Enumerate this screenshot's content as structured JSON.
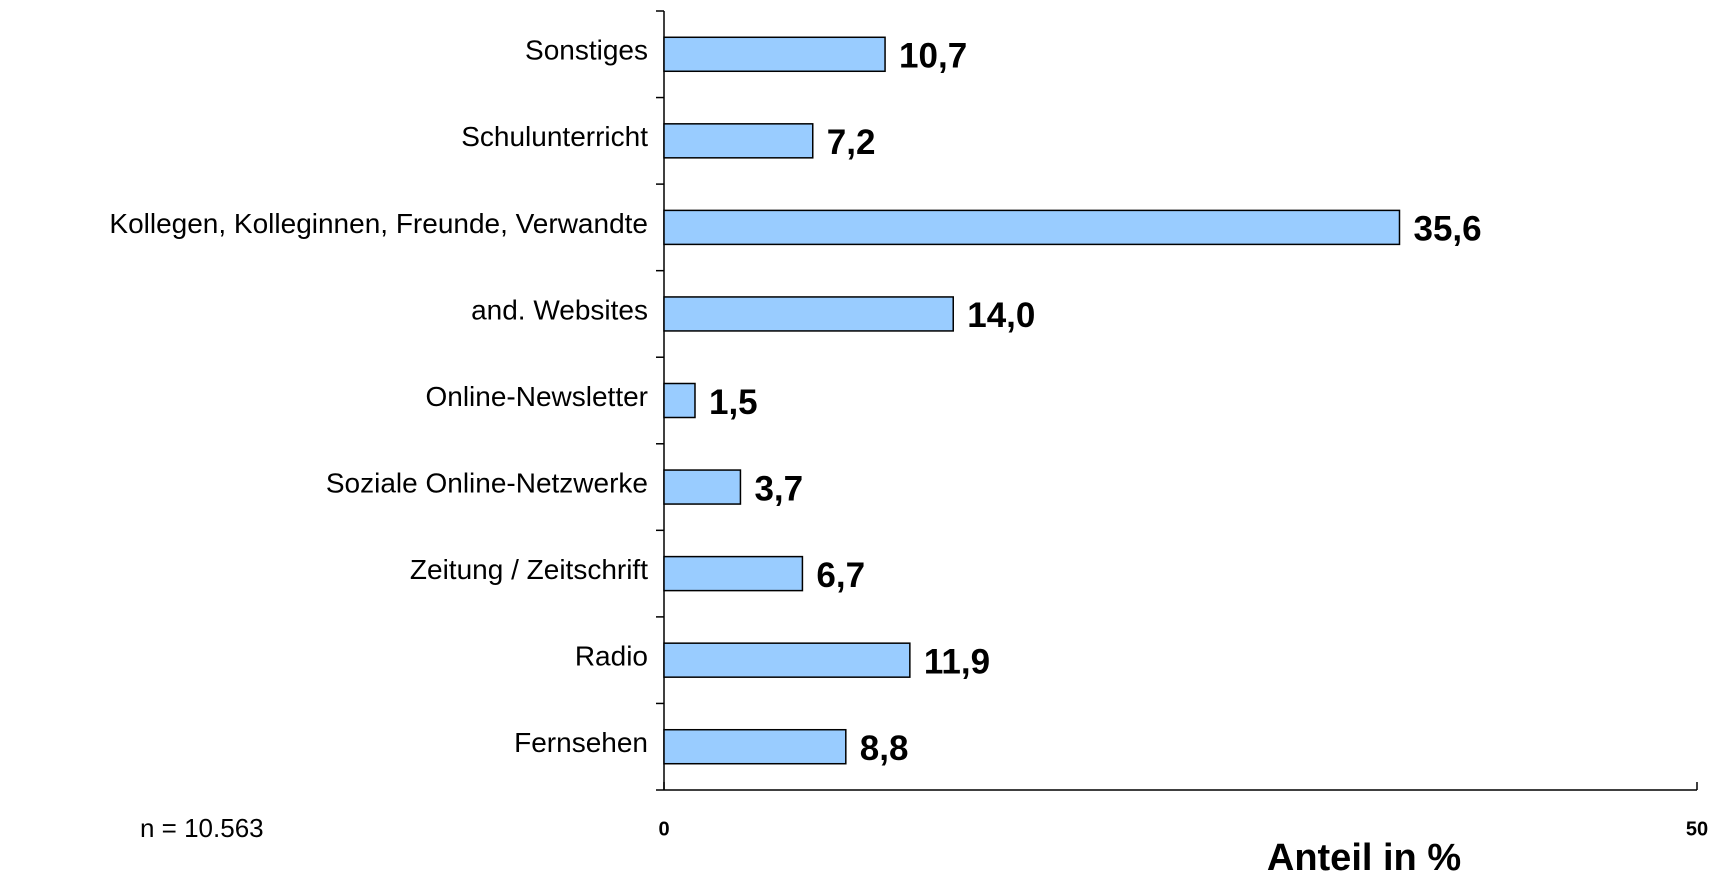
{
  "chart_data": {
    "type": "barh",
    "categories": [
      "Sonstiges",
      "Schulunterricht",
      "Kollegen, Kolleginnen, Freunde, Verwandte",
      "and. Websites",
      "Online-Newsletter",
      "Soziale Online-Netzwerke",
      "Zeitung / Zeitschrift",
      "Radio",
      "Fernsehen"
    ],
    "values": [
      10.7,
      7.2,
      35.6,
      14.0,
      1.5,
      3.7,
      6.7,
      11.9,
      8.8
    ],
    "value_labels": [
      "10,7",
      "7,2",
      "35,6",
      "14,0",
      "1,5",
      "3,7",
      "6,7",
      "11,9",
      "8,8"
    ],
    "color": "#99ccff",
    "xlim": [
      0,
      50
    ],
    "xticks": [
      0,
      50
    ],
    "xlabel": "Anteil in %",
    "annotation": "n = 10.563"
  }
}
